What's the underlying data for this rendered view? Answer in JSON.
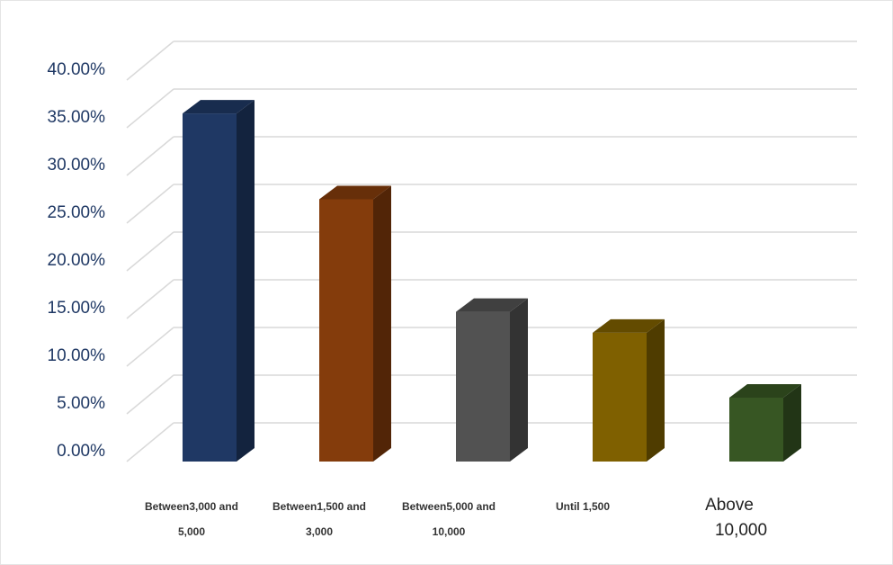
{
  "chart_data": {
    "type": "bar",
    "style": "3d-column",
    "title": "",
    "xlabel": "",
    "ylabel": "",
    "ylim": [
      0,
      40
    ],
    "y_ticks": [
      "0.00%",
      "5.00%",
      "10.00%",
      "15.00%",
      "20.00%",
      "25.00%",
      "30.00%",
      "35.00%",
      "40.00%"
    ],
    "grid": true,
    "legend": "none",
    "categories": [
      {
        "lines": [
          "Between3,000 and",
          "5,000"
        ],
        "label_style": "small"
      },
      {
        "lines": [
          "Between1,500 and",
          "3,000"
        ],
        "label_style": "small"
      },
      {
        "lines": [
          "Between5,000 and",
          "10,000"
        ],
        "label_style": "small"
      },
      {
        "lines": [
          "Until 1,500"
        ],
        "label_style": "small"
      },
      {
        "lines": [
          "Above",
          "10,000"
        ],
        "label_style": "large"
      }
    ],
    "values": [
      36.5,
      27.5,
      15.7,
      13.5,
      6.7
    ],
    "colors": [
      "#1f3864",
      "#843c0c",
      "#525252",
      "#7f6000",
      "#375623"
    ]
  }
}
